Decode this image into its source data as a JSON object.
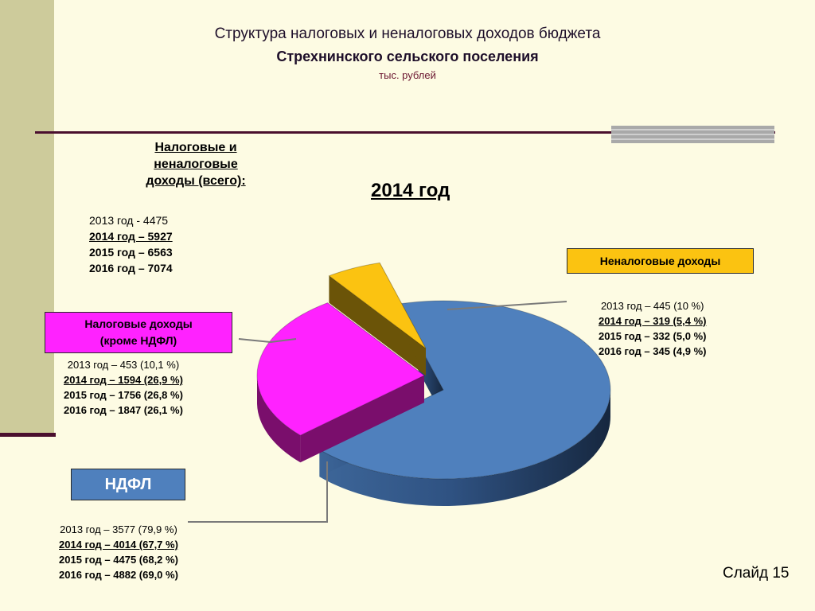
{
  "title": {
    "line1": "Структура налоговых и неналоговых доходов бюджета",
    "line2": "Стрехнинского сельского поселения",
    "unit": "тыс. рублей"
  },
  "total": {
    "heading": [
      "Налоговые и",
      "неналоговые",
      " доходы (всего):"
    ],
    "lines": [
      "2013 год -  4475",
      "2014 год – 5927",
      "2015 год – 6563",
      "2016 год – 7074"
    ]
  },
  "year_heading": "2014 год",
  "labels": {
    "nontax": "Неналоговые доходы",
    "tax": [
      "Налоговые доходы",
      "(кроме НДФЛ)"
    ],
    "ndfl": "НДФЛ"
  },
  "nontax_lines": [
    "2013 год – 445 (10 %)",
    "2014 год – 319 (5,4 %)",
    "2015 год – 332 (5,0 %)",
    "2016 год – 345 (4,9 %)"
  ],
  "tax_lines": [
    "2013 год – 453 (10,1 %)",
    "2014 год – 1594 (26,9 %)",
    "2015 год – 1756 (26,8 %)",
    "2016 год – 1847 (26,1 %)"
  ],
  "ndfl_lines": [
    "2013 год – 3577 (79,9 %)",
    "2014 год – 4014 (67,7 %)",
    "2015 год – 4475 (68,2 %)",
    "2016 год – 4882 (69,0 %)"
  ],
  "slide": "Слайд 15",
  "colors": {
    "ndfl": "#4f80bd",
    "tax": "#ff22ff",
    "nontax": "#fbc311",
    "background": "#fdfbe3"
  },
  "chart_data": {
    "type": "pie",
    "title": "2014 год",
    "style": "3d-exploded",
    "slices": [
      {
        "label": "НДФЛ",
        "value": 4014,
        "percent": 67.7
      },
      {
        "label": "Налоговые доходы (кроме НДФЛ)",
        "value": 1594,
        "percent": 26.9
      },
      {
        "label": "Неналоговые доходы",
        "value": 319,
        "percent": 5.4
      }
    ]
  }
}
